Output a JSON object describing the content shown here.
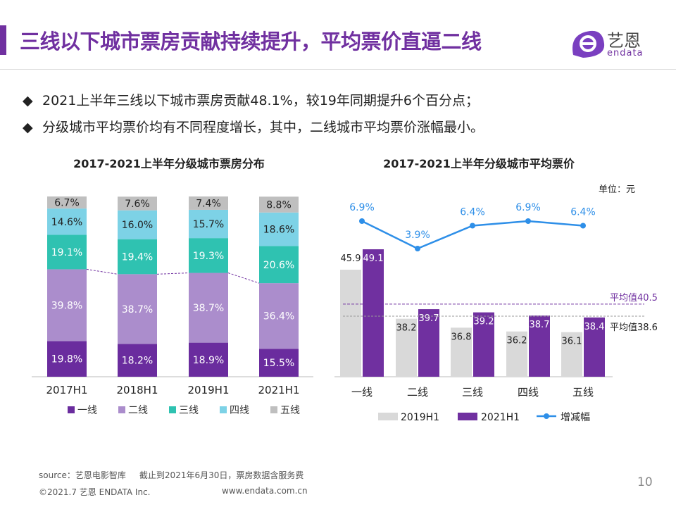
{
  "title": "三线以下城市票房贡献持续提升，平均票价直逼二线",
  "logo": {
    "cn": "艺恩",
    "en": "endata"
  },
  "bullets": [
    "2021上半年三线以下城市票房贡献48.1%，较19年同期提升6个百分点；",
    "分级城市平均票价均有不同程度增长，其中，二线城市平均票价涨幅最小。"
  ],
  "bullet_icon": "diamond-icon",
  "footer": {
    "source": "source：艺恩电影智库     截止到2021年6月30日，票房数据含服务费",
    "copyright": "©2021.7 艺恩 ENDATA Inc.",
    "url": "www.endata.com.cn",
    "page": "10"
  },
  "chart_data": [
    {
      "type": "bar",
      "stacked": true,
      "title": "2017-2021上半年分级城市票房分布",
      "categories": [
        "2017H1",
        "2018H1",
        "2019H1",
        "2021H1"
      ],
      "unit": "%",
      "ylim": [
        0,
        100
      ],
      "legend": "bottom",
      "series": [
        {
          "name": "一线",
          "color": "#6a2c9e",
          "values": [
            19.8,
            18.2,
            18.9,
            15.5
          ]
        },
        {
          "name": "二线",
          "color": "#ab8dcc",
          "values": [
            39.8,
            38.7,
            38.7,
            36.4
          ]
        },
        {
          "name": "三线",
          "color": "#2fc2b1",
          "values": [
            19.1,
            19.4,
            19.3,
            20.6
          ]
        },
        {
          "name": "四线",
          "color": "#7dd2e6",
          "values": [
            14.6,
            16.0,
            15.7,
            18.6
          ]
        },
        {
          "name": "五线",
          "color": "#bfbfbf",
          "values": [
            6.7,
            7.6,
            7.4,
            8.8
          ]
        }
      ]
    },
    {
      "type": "bar+line",
      "title": "2017-2021上半年分级城市平均票价",
      "unit_label": "单位：元",
      "categories": [
        "一线",
        "二线",
        "三线",
        "四线",
        "五线"
      ],
      "legend": "bottom",
      "series": [
        {
          "name": "2019H1",
          "type": "bar",
          "color": "#d9d9d9",
          "values": [
            45.9,
            38.2,
            36.8,
            36.2,
            36.1
          ]
        },
        {
          "name": "2021H1",
          "type": "bar",
          "color": "#7030a0",
          "values": [
            49.1,
            39.7,
            39.2,
            38.7,
            38.4
          ]
        },
        {
          "name": "增减幅",
          "type": "line",
          "color": "#2e8fe8",
          "values": [
            6.9,
            3.9,
            6.4,
            6.9,
            6.4
          ],
          "labels": [
            "6.9%",
            "3.9%",
            "6.4%",
            "6.9%",
            "6.4%"
          ]
        }
      ],
      "reference_lines": [
        {
          "label": "平均值40.5",
          "value": 40.5,
          "color": "#7030a0"
        },
        {
          "label": "平均值38.6",
          "value": 38.6,
          "color": "#999999"
        }
      ]
    }
  ]
}
